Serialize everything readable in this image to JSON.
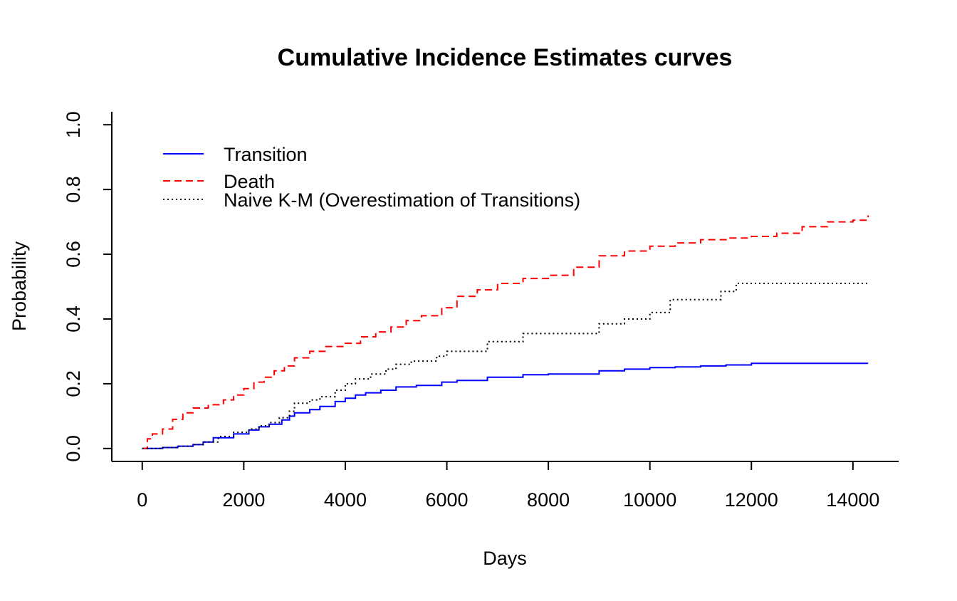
{
  "chart_data": {
    "type": "line",
    "title": "Cumulative Incidence Estimates curves",
    "xlabel": "Days",
    "ylabel": "Probability",
    "xlim": [
      -600,
      14900
    ],
    "ylim": [
      -0.04,
      1.04
    ],
    "x_ticks": [
      0,
      2000,
      4000,
      6000,
      8000,
      10000,
      12000,
      14000
    ],
    "y_ticks": [
      0.0,
      0.2,
      0.4,
      0.6,
      0.8,
      1.0
    ],
    "x_tick_labels": [
      "0",
      "2000",
      "4000",
      "6000",
      "8000",
      "10000",
      "12000",
      "14000"
    ],
    "y_tick_labels": [
      "0.0",
      "0.2",
      "0.4",
      "0.6",
      "0.8",
      "1.0"
    ],
    "grid": false,
    "legend_position": "top-left",
    "step": true,
    "series": [
      {
        "name": "Transition",
        "color": "#0000ff",
        "linestyle": "solid",
        "x": [
          0,
          400,
          700,
          1000,
          1200,
          1400,
          1800,
          2100,
          2300,
          2500,
          2750,
          2900,
          3000,
          3300,
          3500,
          3800,
          4000,
          4200,
          4400,
          4700,
          5000,
          5400,
          5900,
          6200,
          6800,
          7500,
          8000,
          9000,
          9500,
          10000,
          10500,
          11000,
          11500,
          12000,
          12500,
          13000,
          14300
        ],
        "y": [
          0.0,
          0.003,
          0.007,
          0.012,
          0.02,
          0.033,
          0.045,
          0.057,
          0.067,
          0.075,
          0.088,
          0.1,
          0.11,
          0.12,
          0.13,
          0.145,
          0.155,
          0.165,
          0.172,
          0.18,
          0.19,
          0.195,
          0.205,
          0.21,
          0.22,
          0.228,
          0.23,
          0.24,
          0.245,
          0.25,
          0.252,
          0.255,
          0.258,
          0.263,
          0.263,
          0.263,
          0.263
        ]
      },
      {
        "name": "Death",
        "color": "#ff0000",
        "linestyle": "dashed",
        "x": [
          0,
          100,
          200,
          400,
          600,
          800,
          1000,
          1300,
          1600,
          1800,
          2000,
          2200,
          2400,
          2600,
          2800,
          3000,
          3300,
          3600,
          4000,
          4300,
          4600,
          4900,
          5200,
          5500,
          5900,
          6200,
          6600,
          7000,
          7500,
          8000,
          8500,
          9000,
          9500,
          10000,
          10500,
          11000,
          11500,
          12000,
          12500,
          13000,
          13500,
          14000,
          14300
        ],
        "y": [
          0.0,
          0.03,
          0.045,
          0.06,
          0.09,
          0.11,
          0.125,
          0.135,
          0.15,
          0.165,
          0.185,
          0.205,
          0.22,
          0.24,
          0.255,
          0.28,
          0.3,
          0.315,
          0.325,
          0.345,
          0.36,
          0.375,
          0.395,
          0.41,
          0.435,
          0.47,
          0.49,
          0.51,
          0.525,
          0.535,
          0.56,
          0.595,
          0.61,
          0.625,
          0.635,
          0.645,
          0.65,
          0.655,
          0.665,
          0.685,
          0.7,
          0.705,
          0.72
        ]
      },
      {
        "name": "Naive K-M (Overestimation of Transitions)",
        "color": "#000000",
        "linestyle": "dotted",
        "x": [
          0,
          400,
          700,
          1000,
          1200,
          1500,
          1800,
          2100,
          2300,
          2500,
          2700,
          2900,
          3000,
          3300,
          3500,
          3800,
          4000,
          4200,
          4500,
          4800,
          5000,
          5300,
          5800,
          6000,
          6800,
          7500,
          8000,
          9000,
          9500,
          10000,
          10400,
          11400,
          11700,
          12000,
          12500,
          13000,
          14300
        ],
        "y": [
          0.0,
          0.003,
          0.007,
          0.012,
          0.02,
          0.037,
          0.05,
          0.06,
          0.07,
          0.08,
          0.095,
          0.115,
          0.14,
          0.15,
          0.16,
          0.18,
          0.2,
          0.215,
          0.23,
          0.245,
          0.26,
          0.27,
          0.285,
          0.3,
          0.33,
          0.355,
          0.355,
          0.385,
          0.4,
          0.42,
          0.46,
          0.485,
          0.51,
          0.51,
          0.51,
          0.51,
          0.51
        ]
      }
    ]
  }
}
